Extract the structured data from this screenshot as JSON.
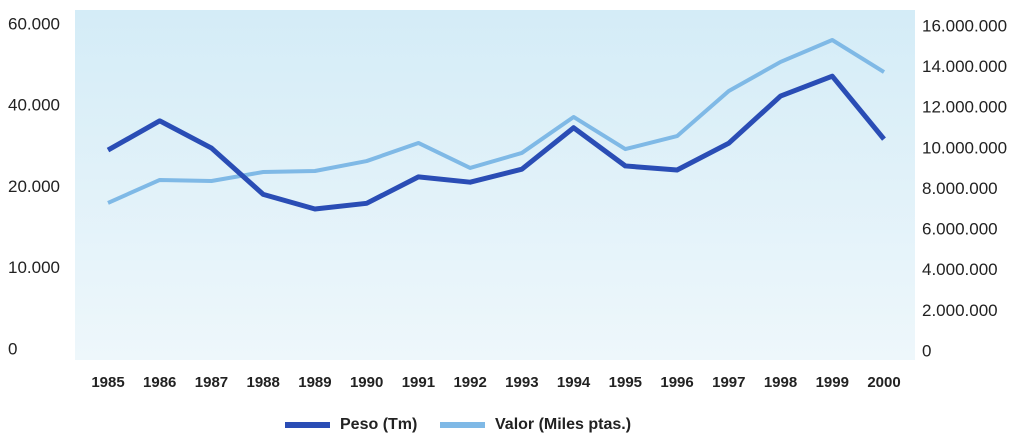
{
  "chart_data": {
    "type": "line",
    "categories": [
      "1985",
      "1986",
      "1987",
      "1988",
      "1989",
      "1990",
      "1991",
      "1992",
      "1993",
      "1994",
      "1995",
      "1996",
      "1997",
      "1998",
      "1999",
      "2000"
    ],
    "series": [
      {
        "name": "Peso (Tm)",
        "color": "#2a4db5",
        "values": [
          29700,
          36900,
          30200,
          19400,
          17600,
          18300,
          23100,
          21800,
          25000,
          35200,
          25800,
          24800,
          31400,
          43000,
          47900,
          32400
        ]
      },
      {
        "name": "Valor (Miles ptas.)",
        "color": "#7fb9e6",
        "axis": "y2",
        "values": [
          7340000,
          8470000,
          8420000,
          8860000,
          8910000,
          9400000,
          10290000,
          9060000,
          9800000,
          11570000,
          9990000,
          10630000,
          12850000,
          14280000,
          15360000,
          13780000
        ]
      }
    ],
    "ylim": [
      0,
      60000
    ],
    "yticks": [
      0,
      {
        "value": 10000,
        "label": "10.000"
      },
      {
        "value": 20000,
        "label": "20.000"
      },
      {
        "value": 40000,
        "label": "40.000"
      },
      {
        "value": 60000,
        "label": "60.000"
      }
    ],
    "y2lim": [
      0,
      16000000
    ],
    "y2ticks": [
      0,
      {
        "value": 2000000,
        "label": "2.000.000"
      },
      {
        "value": 4000000,
        "label": "4.000.000"
      },
      {
        "value": 6000000,
        "label": "6.000.000"
      },
      {
        "value": 8000000,
        "label": "8.000.000"
      },
      {
        "value": 10000000,
        "label": "10.000.000"
      },
      {
        "value": 12000000,
        "label": "12.000.000"
      },
      {
        "value": 14000000,
        "label": "14.000.000"
      },
      {
        "value": 16000000,
        "label": "16.000.000"
      }
    ],
    "legend": "bottom"
  }
}
